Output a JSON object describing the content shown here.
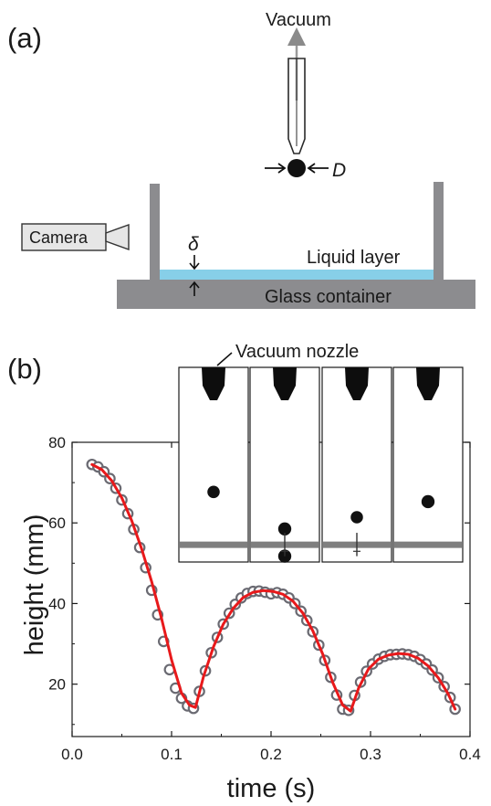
{
  "panel_a": {
    "label": "(a)",
    "vacuum_label": "Vacuum",
    "diameter_label": "D",
    "camera_label": "Camera",
    "thickness_label": "δ",
    "liquid_label": "Liquid layer",
    "container_label": "Glass container",
    "colors": {
      "glass": "#8c8c8f",
      "liquid": "#87cfe8",
      "camera_fill": "#e6e6e6"
    }
  },
  "panel_b": {
    "label": "(b)",
    "nozzle_label": "Vacuum nozzle",
    "inset_frames": [
      {
        "drops": [
          {
            "y": 0.64,
            "r": 0.045
          }
        ],
        "splash": false
      },
      {
        "drops": [
          {
            "y": 0.83,
            "r": 0.05
          },
          {
            "y": 0.97,
            "r": 0.05
          }
        ],
        "splash": true
      },
      {
        "drops": [
          {
            "y": 0.77,
            "r": 0.045
          }
        ],
        "splash": true
      },
      {
        "drops": [
          {
            "y": 0.69,
            "r": 0.05
          }
        ],
        "splash": false
      }
    ]
  },
  "chart_data": {
    "type": "scatter",
    "xlabel": "time (s)",
    "ylabel": "height (mm)",
    "xlim": [
      0.0,
      0.4
    ],
    "ylim": [
      7,
      80
    ],
    "xticks": [
      "0.0",
      "0.1",
      "0.2",
      "0.3",
      "0.4"
    ],
    "xtick_values": [
      0.0,
      0.1,
      0.2,
      0.3,
      0.4
    ],
    "yticks": [
      "20",
      "40",
      "60",
      "80"
    ],
    "ytick_values": [
      20,
      40,
      60,
      80
    ],
    "grid": false,
    "series": [
      {
        "marker": "open-circle",
        "color": "#6a6a72",
        "x": [
          0.02,
          0.026,
          0.032,
          0.038,
          0.044,
          0.05,
          0.056,
          0.062,
          0.068,
          0.074,
          0.08,
          0.086,
          0.092,
          0.098,
          0.104,
          0.11,
          0.116,
          0.122,
          0.128,
          0.134,
          0.14,
          0.146,
          0.152,
          0.158,
          0.164,
          0.17,
          0.176,
          0.182,
          0.188,
          0.194,
          0.2,
          0.206,
          0.212,
          0.218,
          0.224,
          0.23,
          0.236,
          0.242,
          0.248,
          0.254,
          0.26,
          0.266,
          0.272,
          0.278,
          0.284,
          0.29,
          0.296,
          0.302,
          0.308,
          0.314,
          0.32,
          0.326,
          0.332,
          0.338,
          0.344,
          0.35,
          0.356,
          0.362,
          0.368,
          0.374,
          0.38,
          0.385
        ],
        "y": [
          74.5,
          73.9,
          72.7,
          71.0,
          68.6,
          65.7,
          62.3,
          58.4,
          53.9,
          48.9,
          43.3,
          37.2,
          30.6,
          23.6,
          19.0,
          16.5,
          14.6,
          14.0,
          18.2,
          23.3,
          27.8,
          31.6,
          34.9,
          37.6,
          39.8,
          41.4,
          42.5,
          43.0,
          43.1,
          42.8,
          42.4,
          42.7,
          42.3,
          41.4,
          40.0,
          38.1,
          35.8,
          33.0,
          29.7,
          25.9,
          21.7,
          17.3,
          13.8,
          13.5,
          17.2,
          20.5,
          23.2,
          25.0,
          26.2,
          26.9,
          27.3,
          27.4,
          27.5,
          27.3,
          26.9,
          26.1,
          25.0,
          23.5,
          21.6,
          19.4,
          16.7,
          13.8
        ]
      },
      {
        "marker": "line",
        "color": "#e8191b",
        "x": [
          0.02,
          0.03,
          0.04,
          0.05,
          0.06,
          0.07,
          0.08,
          0.09,
          0.1,
          0.11,
          0.118,
          0.124,
          0.132,
          0.142,
          0.152,
          0.162,
          0.172,
          0.182,
          0.192,
          0.202,
          0.212,
          0.222,
          0.232,
          0.242,
          0.252,
          0.262,
          0.272,
          0.28,
          0.288,
          0.298,
          0.308,
          0.318,
          0.328,
          0.338,
          0.348,
          0.358,
          0.368,
          0.378,
          0.385
        ],
        "y": [
          74.5,
          73.2,
          70.4,
          66.2,
          60.5,
          53.5,
          45.4,
          36.2,
          26.0,
          17.8,
          14.8,
          14.2,
          21.8,
          29.2,
          34.9,
          38.8,
          41.5,
          42.8,
          43.2,
          43.0,
          42.3,
          40.6,
          37.6,
          33.2,
          27.4,
          20.4,
          14.8,
          13.3,
          19.0,
          23.8,
          26.2,
          27.2,
          27.6,
          27.4,
          26.4,
          24.5,
          21.6,
          17.6,
          13.8
        ]
      }
    ]
  }
}
